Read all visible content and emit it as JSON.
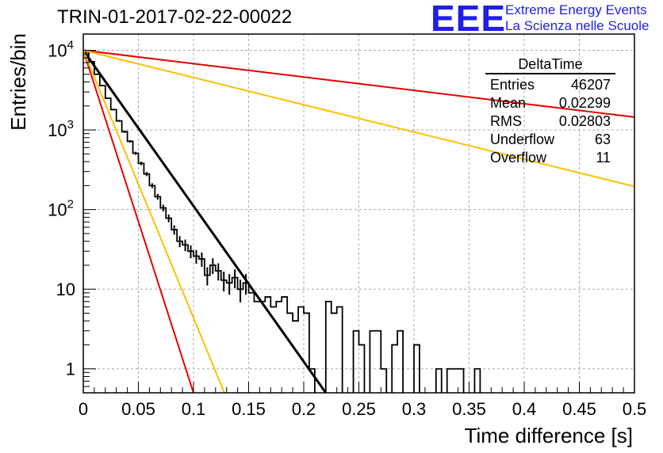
{
  "title": "TRIN-01-2017-02-22-00022",
  "logo": {
    "mark": "EEE",
    "line1": "Extreme Energy Events",
    "line2": "La Scienza nelle Scuole"
  },
  "stats_box": {
    "title": "DeltaTime",
    "rows": [
      {
        "label": "Entries",
        "value": "46207"
      },
      {
        "label": "Mean",
        "value": "0.02299"
      },
      {
        "label": "RMS",
        "value": "0.02803"
      },
      {
        "label": "Underflow",
        "value": "63"
      },
      {
        "label": "Overflow",
        "value": "11"
      }
    ]
  },
  "chart_data": {
    "type": "line",
    "title": "TRIN-01-2017-02-22-00022",
    "xlabel": "Time difference [s]",
    "ylabel": "Entries/bin",
    "xlim": [
      0,
      0.5
    ],
    "ylim": [
      0.5,
      16000
    ],
    "y_scale": "log",
    "grid": true,
    "x_ticks": [
      "0",
      "0.05",
      "0.1",
      "0.15",
      "0.2",
      "0.25",
      "0.3",
      "0.35",
      "0.4",
      "0.45",
      "0.5"
    ],
    "y_tick_labels": [
      {
        "value": 1,
        "label": "1"
      },
      {
        "value": 10,
        "label": "10"
      },
      {
        "value": 100,
        "label": "10^2"
      },
      {
        "value": 1000,
        "label": "10^3"
      },
      {
        "value": 10000,
        "label": "10^4"
      }
    ],
    "histogram": {
      "bin_width": 0.005,
      "counts": [
        9500,
        7200,
        5000,
        3600,
        2500,
        1800,
        1300,
        950,
        720,
        510,
        380,
        280,
        200,
        145,
        105,
        78,
        56,
        40,
        36,
        30,
        26,
        24,
        15,
        20,
        17,
        13,
        12,
        14,
        10,
        12,
        9,
        7,
        7,
        8,
        6,
        7,
        8,
        5,
        4,
        6,
        5,
        1,
        0,
        0,
        7,
        5,
        6,
        0,
        0,
        3,
        2,
        0,
        3,
        3,
        1,
        0,
        2,
        3,
        0,
        0,
        2,
        0,
        0,
        0,
        1,
        0,
        1,
        1,
        1,
        0,
        0,
        1,
        0,
        0,
        0,
        0,
        0,
        0,
        0,
        0,
        0,
        0,
        0,
        0,
        0,
        0,
        0,
        0,
        0,
        0,
        0,
        0,
        0,
        0,
        0,
        0,
        0,
        0,
        0,
        0
      ]
    },
    "series": [
      {
        "color": "#000000",
        "x": [
          0,
          0.22
        ],
        "y": [
          10000,
          0.5
        ]
      },
      {
        "color": "#e60000",
        "x": [
          0,
          0.5
        ],
        "y": [
          10000,
          1450
        ]
      },
      {
        "color": "#ffbf00",
        "x": [
          0,
          0.5
        ],
        "y": [
          10000,
          195
        ]
      },
      {
        "color": "#e60000",
        "x": [
          0,
          0.1
        ],
        "y": [
          10000,
          0.5
        ]
      },
      {
        "color": "#ffbf00",
        "x": [
          0,
          0.128
        ],
        "y": [
          10000,
          0.5
        ]
      }
    ]
  }
}
